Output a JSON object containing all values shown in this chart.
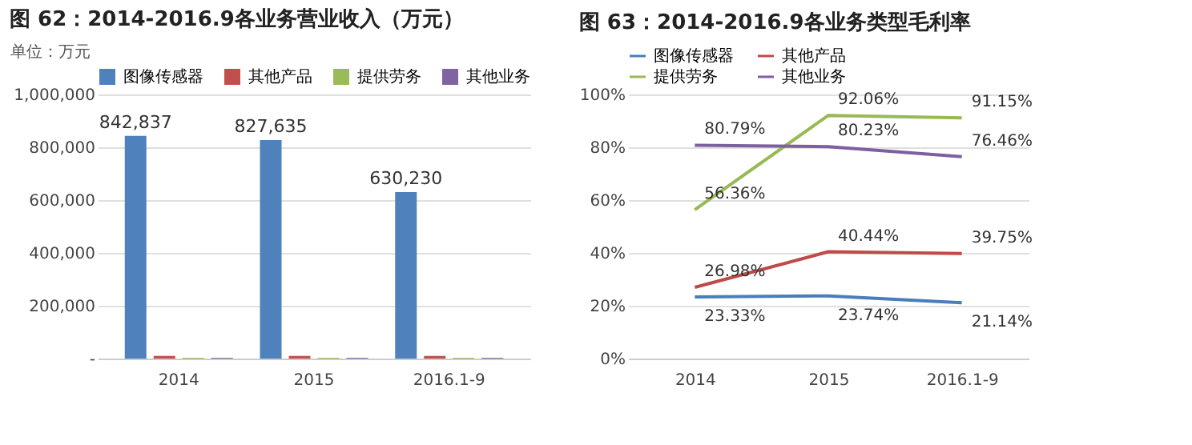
{
  "chart_data": [
    {
      "type": "bar",
      "title": "图 62：2014-2016.9各业务营业收入（万元）",
      "ylabel": "单位：万元",
      "categories": [
        "2014",
        "2015",
        "2016.1-9"
      ],
      "series": [
        {
          "name": "图像传感器",
          "color": "#4f81bd",
          "values": [
            842837,
            827635,
            630230
          ],
          "value_labels": [
            "842,837",
            "827,635",
            "630,230"
          ]
        },
        {
          "name": "其他产品",
          "color": "#c0504d",
          "values": [
            10000,
            10000,
            10000
          ]
        },
        {
          "name": "提供劳务",
          "color": "#9bbb59",
          "values": [
            3000,
            3000,
            3000
          ]
        },
        {
          "name": "其他业务",
          "color": "#8064a2",
          "values": [
            3000,
            3000,
            3000
          ]
        }
      ],
      "ylim": [
        0,
        1000000
      ],
      "yticks": [
        {
          "value": 0,
          "label": "-"
        },
        {
          "value": 200000,
          "label": "200,000"
        },
        {
          "value": 400000,
          "label": "400,000"
        },
        {
          "value": 600000,
          "label": "600,000"
        },
        {
          "value": 800000,
          "label": "800,000"
        },
        {
          "value": 1000000,
          "label": "1,000,000"
        }
      ],
      "grid": "y",
      "legend": "top"
    },
    {
      "type": "line",
      "title": "图 63：2014-2016.9各业务类型毛利率",
      "categories": [
        "2014",
        "2015",
        "2016.1-9"
      ],
      "series": [
        {
          "name": "图像传感器",
          "color": "#4a7ebb",
          "values": [
            23.33,
            23.74,
            21.14
          ],
          "value_labels": [
            "23.33%",
            "23.74%",
            "21.14%"
          ]
        },
        {
          "name": "其他产品",
          "color": "#be4b48",
          "values": [
            26.98,
            40.44,
            39.75
          ],
          "value_labels": [
            "26.98%",
            "40.44%",
            "39.75%"
          ]
        },
        {
          "name": "提供劳务",
          "color": "#98b954",
          "values": [
            56.36,
            92.06,
            91.15
          ],
          "value_labels": [
            "56.36%",
            "92.06%",
            "91.15%"
          ]
        },
        {
          "name": "其他业务",
          "color": "#7d60a0",
          "values": [
            80.79,
            80.23,
            76.46
          ],
          "value_labels": [
            "80.79%",
            "80.23%",
            "76.46%"
          ]
        }
      ],
      "ylim": [
        0,
        100
      ],
      "yticks": [
        {
          "value": 0,
          "label": "0%"
        },
        {
          "value": 20,
          "label": "20%"
        },
        {
          "value": 40,
          "label": "40%"
        },
        {
          "value": 60,
          "label": "60%"
        },
        {
          "value": 80,
          "label": "80%"
        },
        {
          "value": 100,
          "label": "100%"
        }
      ],
      "grid": "y",
      "legend": "top"
    }
  ]
}
